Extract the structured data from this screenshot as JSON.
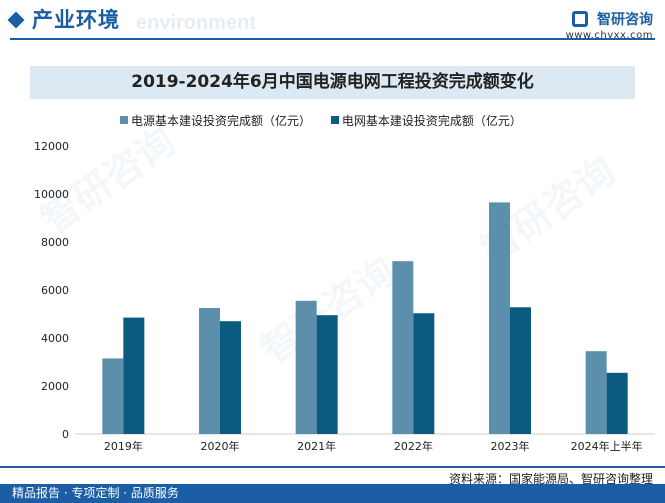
{
  "header": {
    "title": "产业环境",
    "subtitle": "environment",
    "brand_name": "智研咨询",
    "brand_url": "www.chyxx.com"
  },
  "watermark_text": "智研咨询",
  "legend": [
    {
      "label": "电源基本建设投资完成额（亿元）",
      "color": "#5b8fab"
    },
    {
      "label": "电网基本建设投资完成额（亿元）",
      "color": "#0a5b7f"
    }
  ],
  "chart_data": {
    "type": "bar",
    "title": "2019-2024年6月中国电源电网工程投资完成额变化",
    "categories": [
      "2019年",
      "2020年",
      "2021年",
      "2022年",
      "2023年",
      "2024年上半年"
    ],
    "series": [
      {
        "name": "电源基本建设投资完成额（亿元）",
        "color": "#5b8fab",
        "values": [
          3150,
          5250,
          5550,
          7200,
          9650,
          3450
        ]
      },
      {
        "name": "电网基本建设投资完成额（亿元）",
        "color": "#0a5b7f",
        "values": [
          4850,
          4700,
          4950,
          5030,
          5280,
          2550
        ]
      }
    ],
    "yticks": [
      0,
      2000,
      4000,
      6000,
      8000,
      10000,
      12000
    ],
    "ylim": [
      0,
      12000
    ],
    "xlabel": "",
    "ylabel": ""
  },
  "footer": {
    "source": "资料来源：国家能源局、智研咨询整理",
    "tagline": "精品报告 · 专项定制 · 品质服务"
  }
}
